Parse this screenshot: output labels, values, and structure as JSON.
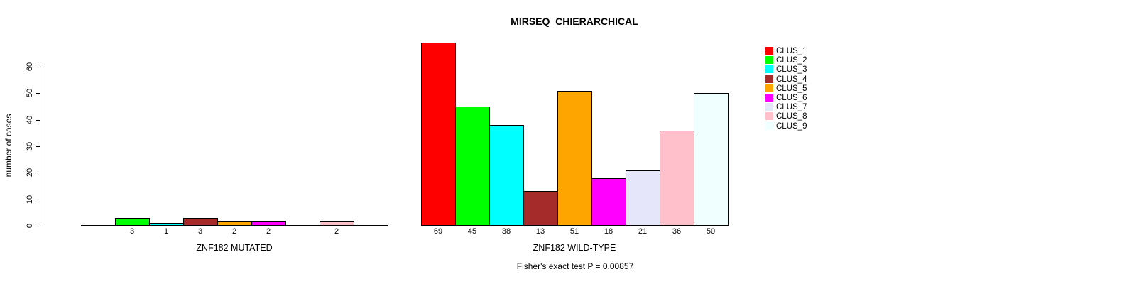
{
  "chart_data": {
    "type": "bar",
    "title": "MIRSEQ_CHIERARCHICAL",
    "ylabel": "number of cases",
    "ylim": [
      0,
      60
    ],
    "yticks": [
      0,
      10,
      20,
      30,
      40,
      50,
      60
    ],
    "grid": false,
    "legend_position": "right",
    "categories": [
      "CLUS_1",
      "CLUS_2",
      "CLUS_3",
      "CLUS_4",
      "CLUS_5",
      "CLUS_6",
      "CLUS_7",
      "CLUS_8",
      "CLUS_9"
    ],
    "cluster_colors": [
      "#FF0000",
      "#00FF00",
      "#00FFFF",
      "#A52A2A",
      "#FFA500",
      "#FF00FF",
      "#E6E6FA",
      "#FFC0CB",
      "#F0FFFF"
    ],
    "panels": [
      {
        "xlabel": "ZNF182 MUTATED",
        "values": [
          0,
          3,
          1,
          3,
          2,
          2,
          0,
          2,
          0
        ]
      },
      {
        "xlabel": "ZNF182 WILD-TYPE",
        "values": [
          69,
          45,
          38,
          13,
          51,
          18,
          21,
          36,
          50
        ]
      }
    ],
    "annotation": "Fisher's exact test P = 0.00857"
  }
}
